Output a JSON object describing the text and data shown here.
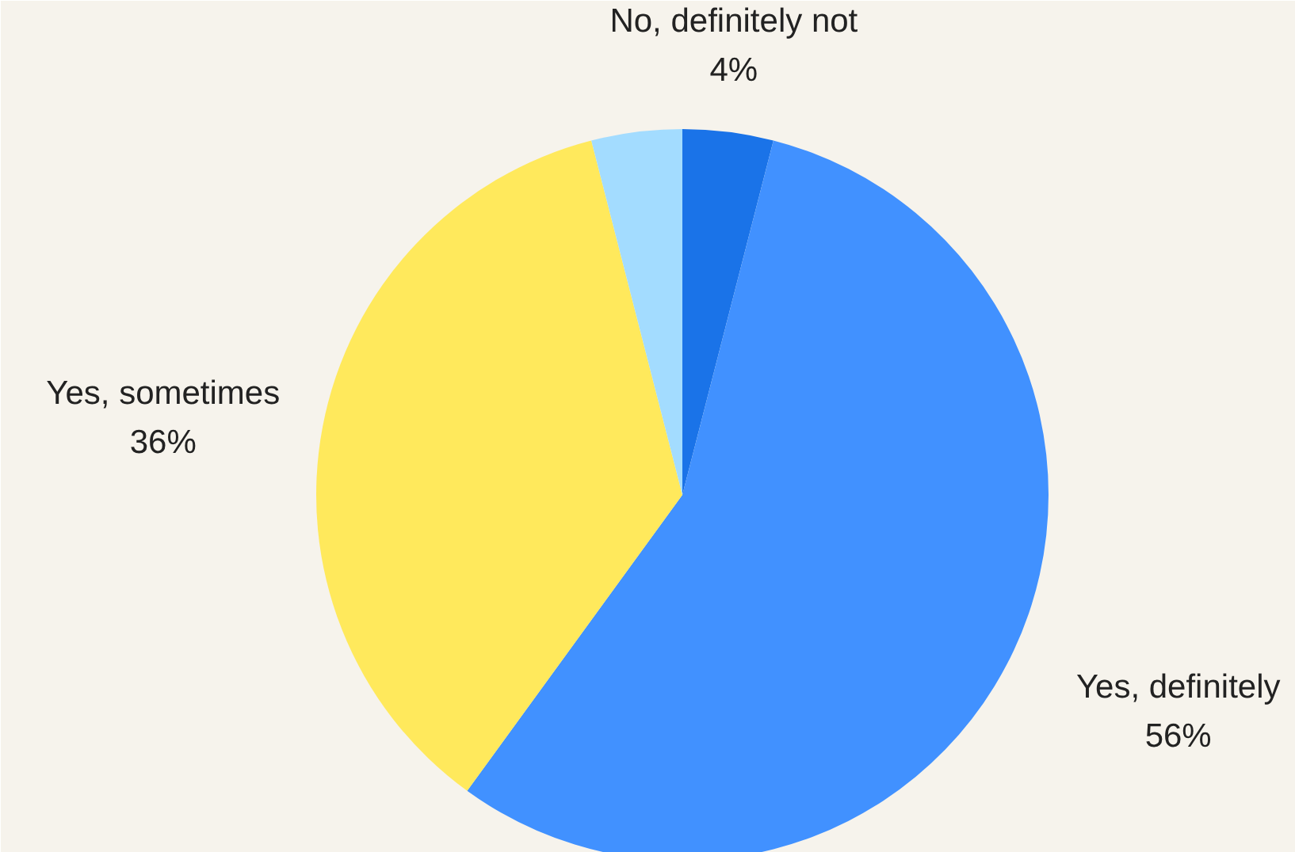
{
  "chart_data": {
    "type": "pie",
    "categories": [
      "No, definitely not",
      "Yes, definitely",
      "Yes, sometimes",
      null
    ],
    "values": [
      4,
      56,
      36,
      4
    ],
    "colors": [
      "#1a73e8",
      "#4191ff",
      "#ffe95c",
      "#a3dcff"
    ],
    "value_labels": [
      "4%",
      "56%",
      "36%",
      null
    ]
  }
}
